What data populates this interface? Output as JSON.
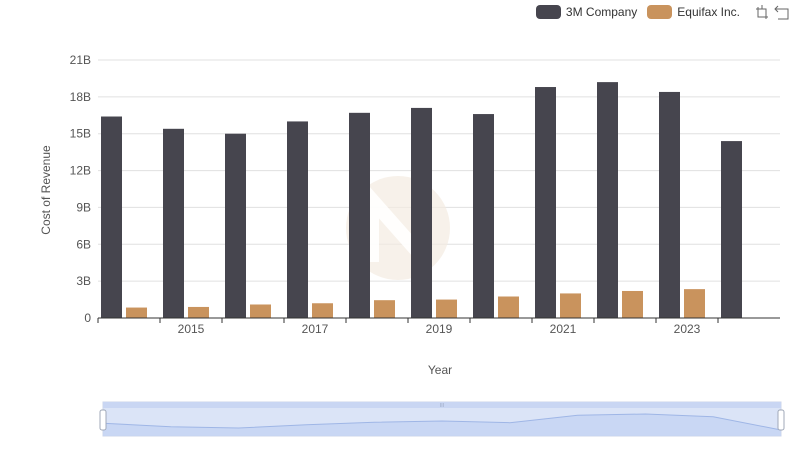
{
  "chart_data": {
    "type": "bar",
    "x": [
      2014,
      2015,
      2016,
      2017,
      2018,
      2019,
      2020,
      2021,
      2022,
      2023,
      2024
    ],
    "x_tick_labels": [
      "2015",
      "2017",
      "2019",
      "2021",
      "2023"
    ],
    "series": [
      {
        "name": "3M Company",
        "color": "#46454e",
        "values": [
          16.4,
          15.4,
          15.0,
          16.0,
          16.7,
          17.1,
          16.6,
          18.8,
          19.2,
          18.4,
          14.4
        ]
      },
      {
        "name": "Equifax Inc.",
        "color": "#c9935d",
        "values": [
          0.85,
          0.9,
          1.1,
          1.2,
          1.45,
          1.5,
          1.75,
          2.0,
          2.2,
          2.35,
          null
        ]
      }
    ],
    "y_ticks": [
      "0",
      "3B",
      "6B",
      "9B",
      "12B",
      "15B",
      "18B",
      "21B"
    ],
    "ylim": [
      0,
      21
    ],
    "ylabel": "Cost of Revenue",
    "xlabel": "Year",
    "grid": "horizontal",
    "legend_position": "top-right"
  },
  "toolbar": {
    "restore_icon": "restore-icon",
    "save_icon": "save-as-image-icon"
  },
  "datazoom": {
    "handle_label": "III"
  }
}
